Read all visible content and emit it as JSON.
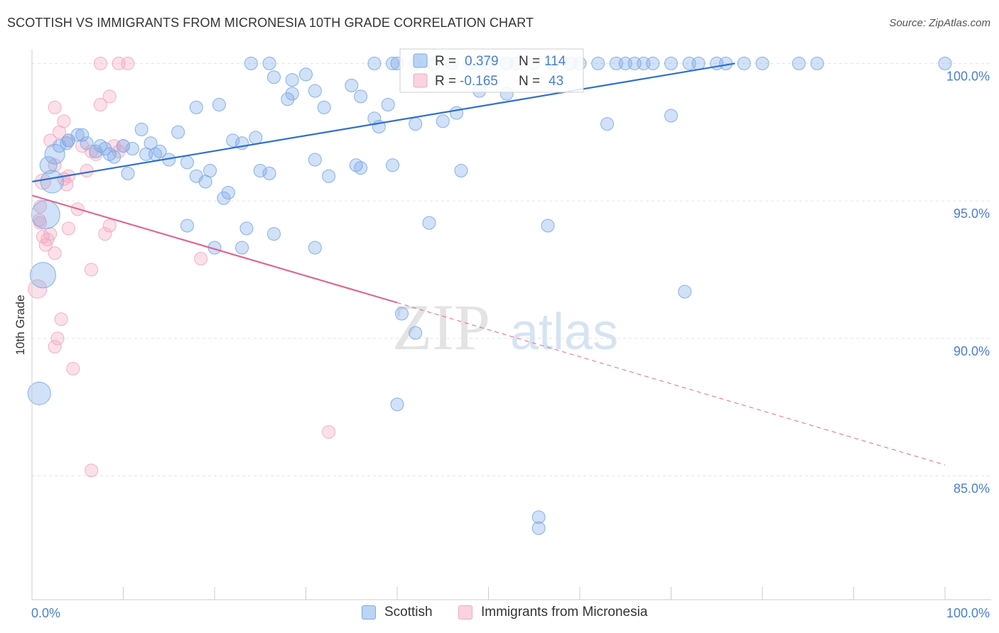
{
  "header": {
    "title": "SCOTTISH VS IMMIGRANTS FROM MICRONESIA 10TH GRADE CORRELATION CHART",
    "source": "Source: ZipAtlas.com"
  },
  "watermark": {
    "part1": "ZIP",
    "part2": "atlas"
  },
  "legend_top": {
    "rows": [
      {
        "r_label": "R = ",
        "r_value": "0.379",
        "n_label": "N = ",
        "n_value": "114",
        "color": "#7aaae8"
      },
      {
        "r_label": "R = ",
        "r_value": "-0.165",
        "n_label": "N = ",
        "n_value": "43",
        "color": "#f4a7bf"
      }
    ]
  },
  "legend_bottom": {
    "items": [
      {
        "label": "Scottish",
        "color": "#7aaae8"
      },
      {
        "label": "Immigrants from Micronesia",
        "color": "#f4a7bf"
      }
    ]
  },
  "chart_data": {
    "type": "scatter",
    "ylabel": "10th Grade",
    "x_tick_labels": [
      "0.0%",
      "100.0%"
    ],
    "y_tick_labels": [
      "100.0%",
      "95.0%",
      "90.0%",
      "85.0%"
    ],
    "y_ticks": [
      100,
      95,
      90,
      85
    ],
    "xlim": [
      0,
      100
    ],
    "ylim": [
      80.5,
      100.5
    ],
    "grid": true,
    "colors": {
      "blue": "#7aaae8",
      "blue_line": "#2f6fcf",
      "pink": "#f4a7bf",
      "pink_line": "#e06890",
      "label": "#4a7fd0"
    },
    "trendlines": [
      {
        "series": 0,
        "x": [
          0,
          77
        ],
        "y": [
          95.7,
          100.0
        ],
        "dashed_to": null
      },
      {
        "series": 1,
        "x": [
          0,
          40
        ],
        "y": [
          95.2,
          91.3
        ],
        "dashed_to": [
          100,
          85.4
        ]
      }
    ],
    "series": [
      {
        "name": "Scottish",
        "points": [
          [
            26.5,
            99.5
          ],
          [
            37.5,
            100
          ],
          [
            39.5,
            100
          ],
          [
            42,
            100
          ],
          [
            44,
            100
          ],
          [
            46,
            100
          ],
          [
            50,
            100
          ],
          [
            55,
            100
          ],
          [
            60,
            100
          ],
          [
            62,
            100
          ],
          [
            64,
            100
          ],
          [
            66,
            100
          ],
          [
            68,
            100
          ],
          [
            70,
            100
          ],
          [
            72,
            100
          ],
          [
            75,
            100
          ],
          [
            78,
            100
          ],
          [
            84,
            100
          ],
          [
            86,
            100
          ],
          [
            100,
            100
          ],
          [
            30,
            99.6
          ],
          [
            31,
            99.0
          ],
          [
            28.5,
            99.4
          ],
          [
            35,
            99.2
          ],
          [
            36,
            98.8
          ],
          [
            37.5,
            98.0
          ],
          [
            38,
            97.7
          ],
          [
            39,
            98.5
          ],
          [
            40,
            100
          ],
          [
            42,
            97.8
          ],
          [
            45,
            97.9
          ],
          [
            46.5,
            98.2
          ],
          [
            52,
            100
          ],
          [
            53,
            100
          ],
          [
            57,
            100
          ],
          [
            59,
            100
          ],
          [
            63,
            97.8
          ],
          [
            65,
            100
          ],
          [
            67,
            100
          ],
          [
            70,
            98.1
          ],
          [
            73,
            100
          ],
          [
            76,
            100
          ],
          [
            80,
            100
          ],
          [
            28,
            98.7
          ],
          [
            20.5,
            98.5
          ],
          [
            24,
            100
          ],
          [
            26,
            100
          ],
          [
            28.5,
            98.9
          ],
          [
            32,
            98.4
          ],
          [
            18,
            98.4
          ],
          [
            3,
            97.0
          ],
          [
            4,
            97.2
          ],
          [
            5,
            97.4
          ],
          [
            6,
            97.1
          ],
          [
            7,
            96.8
          ],
          [
            7.5,
            97.0
          ],
          [
            8,
            96.9
          ],
          [
            9,
            96.6
          ],
          [
            10,
            97.0
          ],
          [
            11,
            96.9
          ],
          [
            12,
            97.6
          ],
          [
            12.5,
            96.7
          ],
          [
            13,
            97.1
          ],
          [
            14,
            96.8
          ],
          [
            15,
            96.5
          ],
          [
            16,
            97.5
          ],
          [
            17,
            96.4
          ],
          [
            18,
            95.9
          ],
          [
            19,
            95.7
          ],
          [
            19.5,
            96.1
          ],
          [
            21,
            95.1
          ],
          [
            21.5,
            95.3
          ],
          [
            22,
            97.2
          ],
          [
            23,
            97.1
          ],
          [
            24.5,
            97.3
          ],
          [
            25,
            96.1
          ],
          [
            26,
            96.0
          ],
          [
            31,
            96.5
          ],
          [
            32.5,
            95.9
          ],
          [
            35.5,
            96.3
          ],
          [
            36,
            96.2
          ],
          [
            2.5,
            96.7
          ],
          [
            1.8,
            96.3
          ],
          [
            2.2,
            95.7
          ],
          [
            3.8,
            97.1
          ],
          [
            5.5,
            97.4
          ],
          [
            8.5,
            96.7
          ],
          [
            10.5,
            96.0
          ],
          [
            13.5,
            96.7
          ],
          [
            1.5,
            94.5
          ],
          [
            1.2,
            92.3
          ],
          [
            0.8,
            88.0
          ],
          [
            17,
            94.1
          ],
          [
            20,
            93.3
          ],
          [
            23,
            93.3
          ],
          [
            23.5,
            94.0
          ],
          [
            26.5,
            93.8
          ],
          [
            31,
            93.3
          ],
          [
            39.5,
            96.3
          ],
          [
            43.5,
            94.2
          ],
          [
            56.5,
            94.1
          ],
          [
            47,
            96.1
          ],
          [
            71.5,
            91.7
          ],
          [
            40.5,
            90.9
          ],
          [
            42,
            90.2
          ],
          [
            40,
            87.6
          ],
          [
            55.5,
            83.5
          ],
          [
            55.5,
            83.1
          ],
          [
            49,
            99.0
          ],
          [
            48,
            100
          ],
          [
            52,
            98.9
          ]
        ],
        "sizes": {
          "default": 9,
          "large": [
            [
              1.5,
              94.5,
              20
            ],
            [
              1.2,
              92.3,
              18
            ],
            [
              0.8,
              88.0,
              16
            ],
            [
              2.2,
              95.7,
              16
            ],
            [
              2.5,
              96.7,
              14
            ],
            [
              1.8,
              96.3,
              12
            ]
          ]
        }
      },
      {
        "name": "Immigrants from Micronesia",
        "points": [
          [
            7.5,
            100
          ],
          [
            9.5,
            100
          ],
          [
            10.5,
            100
          ],
          [
            8.5,
            98.8
          ],
          [
            7.5,
            98.5
          ],
          [
            2.5,
            98.4
          ],
          [
            3.5,
            97.9
          ],
          [
            2,
            97.2
          ],
          [
            3,
            97.5
          ],
          [
            4,
            97.2
          ],
          [
            5.5,
            97.0
          ],
          [
            6.5,
            96.8
          ],
          [
            7,
            96.7
          ],
          [
            9,
            97.0
          ],
          [
            9.5,
            96.8
          ],
          [
            10,
            97.0
          ],
          [
            6,
            96.1
          ],
          [
            1.2,
            95.7
          ],
          [
            2.5,
            96.3
          ],
          [
            3.5,
            95.8
          ],
          [
            4,
            95.9
          ],
          [
            3.8,
            95.6
          ],
          [
            0.9,
            94.8
          ],
          [
            0.8,
            94.3
          ],
          [
            1.2,
            93.7
          ],
          [
            1.5,
            93.4
          ],
          [
            2,
            93.8
          ],
          [
            2.5,
            93.1
          ],
          [
            4,
            94.0
          ],
          [
            5,
            94.7
          ],
          [
            8,
            93.8
          ],
          [
            8.5,
            94.1
          ],
          [
            0.6,
            91.8
          ],
          [
            6.5,
            92.5
          ],
          [
            3.2,
            90.7
          ],
          [
            2.8,
            90.0
          ],
          [
            2.5,
            89.7
          ],
          [
            4.5,
            88.9
          ],
          [
            18.5,
            92.9
          ],
          [
            6.5,
            85.2
          ],
          [
            32.5,
            86.6
          ],
          [
            1.7,
            93.6
          ],
          [
            0.9,
            94.2
          ]
        ],
        "sizes": {
          "default": 9,
          "large": [
            [
              0.6,
              91.8,
              13
            ],
            [
              1.2,
              95.7,
              11
            ]
          ]
        }
      }
    ]
  }
}
